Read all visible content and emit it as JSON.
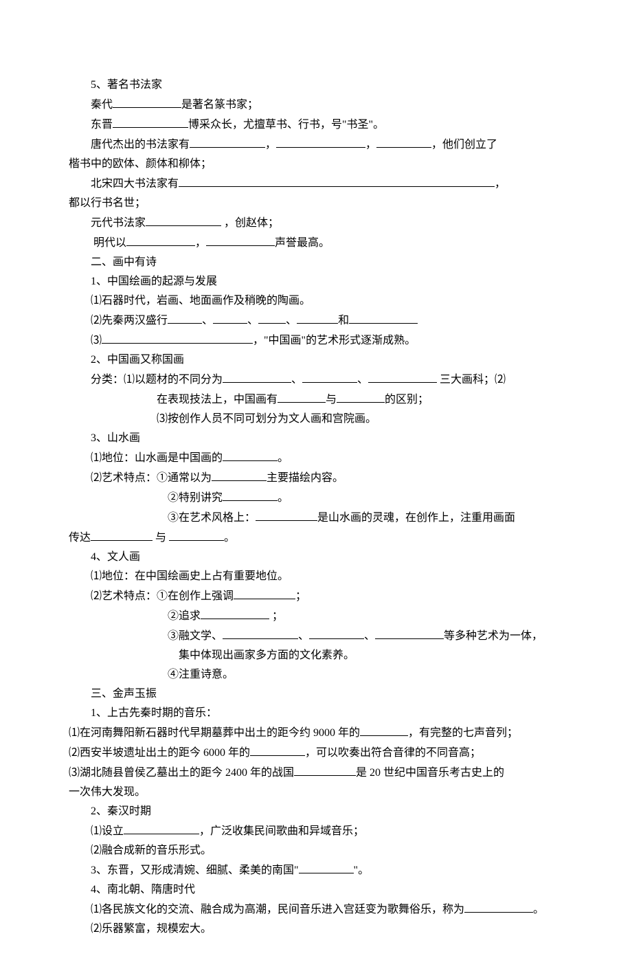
{
  "lines": [
    {
      "cls": "indent1",
      "text": "5、著名书法家"
    },
    {
      "cls": "indent1",
      "parts": [
        {
          "t": "秦代"
        },
        {
          "u": 100
        },
        {
          "t": "是著名篆书家；"
        }
      ]
    },
    {
      "cls": "indent1",
      "parts": [
        {
          "t": "东晋"
        },
        {
          "u": 110
        },
        {
          "t": "博采众长，尤擅草书、行书，号\"书圣\"。"
        }
      ]
    },
    {
      "cls": "indent1",
      "parts": [
        {
          "t": "唐代杰出的书法家有"
        },
        {
          "u": 110
        },
        {
          "t": "，"
        },
        {
          "u": 130
        },
        {
          "t": "，"
        },
        {
          "u": 80
        },
        {
          "t": "，他们创立了"
        }
      ]
    },
    {
      "cls": "noindent",
      "text": "楷书中的欧体、颜体和柳体；"
    },
    {
      "cls": "indent1",
      "parts": [
        {
          "t": "北宋四大书法家有"
        },
        {
          "u": 460
        },
        {
          "t": "，"
        }
      ]
    },
    {
      "cls": "noindent",
      "text": "都以行书名世；"
    },
    {
      "cls": "indent1",
      "parts": [
        {
          "t": "元代书法家"
        },
        {
          "u": 110
        },
        {
          "t": " ，创赵体；"
        }
      ]
    },
    {
      "cls": "indent1",
      "parts": [
        {
          "t": " 明代以"
        },
        {
          "u": 100
        },
        {
          "t": "，"
        },
        {
          "u": 100
        },
        {
          "t": "声誉最高。"
        }
      ]
    },
    {
      "cls": "indent1",
      "text": "二、画中有诗"
    },
    {
      "cls": "indent1",
      "text": "1、中国绘画的起源与发展"
    },
    {
      "cls": "indent1",
      "text": "⑴石器时代，岩画、地面画作及稍晚的陶画。"
    },
    {
      "cls": "indent1",
      "parts": [
        {
          "t": "⑵先秦两汉盛行"
        },
        {
          "u": 50
        },
        {
          "t": "、"
        },
        {
          "u": 50
        },
        {
          "t": "、"
        },
        {
          "u": 40
        },
        {
          "t": "、"
        },
        {
          "u": 60
        },
        {
          "t": "和"
        },
        {
          "u": 100
        }
      ]
    },
    {
      "cls": "indent1",
      "parts": [
        {
          "t": "⑶"
        },
        {
          "u": 220
        },
        {
          "t": "，\"中国画\"的艺术形式逐渐成熟。"
        }
      ]
    },
    {
      "cls": "indent1",
      "text": "2、中国画又称国画"
    },
    {
      "cls": "indent1",
      "parts": [
        {
          "t": "分类：⑴以题材的不同分为"
        },
        {
          "u": 100
        },
        {
          "t": "、"
        },
        {
          "u": 80
        },
        {
          "t": "、"
        },
        {
          "u": 100
        },
        {
          "t": " 三大画科；⑵"
        }
      ]
    },
    {
      "cls": "indent3",
      "parts": [
        {
          "t": "在表现技法上，中国画有"
        },
        {
          "u": 70
        },
        {
          "t": "与"
        },
        {
          "u": 70
        },
        {
          "t": "的区别；"
        }
      ]
    },
    {
      "cls": "indent3",
      "text": "⑶按创作人员不同可划分为文人画和宫院画。"
    },
    {
      "cls": "indent1",
      "text": "3、山水画"
    },
    {
      "cls": "indent1",
      "parts": [
        {
          "t": "⑴地位：山水画是中国画的"
        },
        {
          "u": 80
        },
        {
          "t": "。"
        }
      ]
    },
    {
      "cls": "indent1",
      "parts": [
        {
          "t": "⑵艺术特点：①通常以为"
        },
        {
          "u": 80
        },
        {
          "t": "主要描绘内容。"
        }
      ]
    },
    {
      "cls": "indent4",
      "parts": [
        {
          "t": "②特别讲究"
        },
        {
          "u": 80
        },
        {
          "t": "。"
        }
      ]
    },
    {
      "cls": "indent4",
      "parts": [
        {
          "t": "③在艺术风格上："
        },
        {
          "u": 90
        },
        {
          "t": "是山水画的灵魂，在创作上，注重用画面"
        }
      ]
    },
    {
      "cls": "noindent",
      "parts": [
        {
          "t": "传达"
        },
        {
          "u": 90
        },
        {
          "t": " 与 "
        },
        {
          "u": 80
        },
        {
          "t": "。"
        }
      ]
    },
    {
      "cls": "indent1",
      "text": "4、文人画"
    },
    {
      "cls": "indent1",
      "text": "⑴地位：在中国绘画史上占有重要地位。"
    },
    {
      "cls": "indent1",
      "parts": [
        {
          "t": "⑵艺术特点：①在创作上强调"
        },
        {
          "u": 90
        },
        {
          "t": "；"
        }
      ]
    },
    {
      "cls": "indent4",
      "parts": [
        {
          "t": "②追求"
        },
        {
          "u": 100
        },
        {
          "t": " ；"
        }
      ]
    },
    {
      "cls": "indent4",
      "parts": [
        {
          "t": "③融文学、"
        },
        {
          "u": 110
        },
        {
          "t": "、"
        },
        {
          "u": 80
        },
        {
          "t": "、"
        },
        {
          "u": 100
        },
        {
          "t": "等多种艺术为一体，"
        }
      ]
    },
    {
      "cls": "indent5",
      "text": "集中体现出画家多方面的文化素养。"
    },
    {
      "cls": "indent4",
      "text": "④注重诗意。"
    },
    {
      "cls": "indent1",
      "text": "三、金声玉振"
    },
    {
      "cls": "indent1",
      "text": "1、上古先秦时期的音乐："
    },
    {
      "cls": "noindent",
      "parts": [
        {
          "t": "⑴在河南舞阳新石器时代早期墓葬中出土的距今约 9000 年的"
        },
        {
          "u": 70
        },
        {
          "t": "，有完整的七声音列；"
        }
      ]
    },
    {
      "cls": "noindent",
      "parts": [
        {
          "t": "⑵西安半坡遗址出土的距今 6000 年的"
        },
        {
          "u": 80
        },
        {
          "t": "，可以吹奏出符合音律的不同音高；"
        }
      ]
    },
    {
      "cls": "noindent",
      "parts": [
        {
          "t": "⑶湖北随县曾侯乙墓出土的距今 2400 年的战国"
        },
        {
          "u": 90
        },
        {
          "t": "是 20 世纪中国音乐考古史上的"
        }
      ]
    },
    {
      "cls": "noindent",
      "text": "一次伟大发现。"
    },
    {
      "cls": "indent1",
      "text": "2、秦汉时期"
    },
    {
      "cls": "indent1",
      "parts": [
        {
          "t": "⑴设立"
        },
        {
          "u": 110
        },
        {
          "t": "，广泛收集民间歌曲和异域音乐；"
        }
      ]
    },
    {
      "cls": "indent1",
      "text": "⑵融合成新的音乐形式。"
    },
    {
      "cls": "indent1",
      "parts": [
        {
          "t": "3、东晋，又形成清婉、细腻、柔美的南国\""
        },
        {
          "u": 80
        },
        {
          "t": "\"。"
        }
      ]
    },
    {
      "cls": "indent1",
      "text": "4、南北朝、隋唐时代"
    },
    {
      "cls": "indent1",
      "parts": [
        {
          "t": "⑴各民族文化的交流、融合成为高潮，民间音乐进入宫廷变为歌舞俗乐，称为"
        },
        {
          "u": 100
        },
        {
          "t": "。"
        }
      ]
    },
    {
      "cls": "indent1",
      "text": "⑵乐器繁富，规模宏大。"
    }
  ]
}
